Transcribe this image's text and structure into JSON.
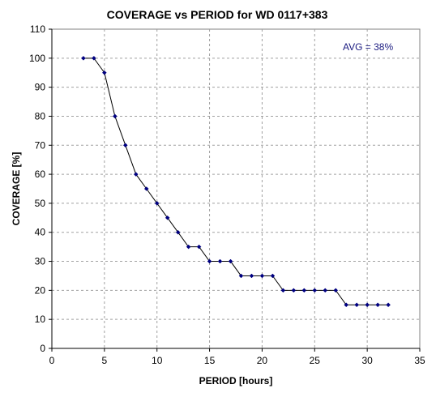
{
  "chart_data": {
    "type": "line",
    "title": "COVERAGE vs PERIOD for WD 0117+383",
    "xlabel": "PERIOD [hours]",
    "ylabel": "COVERAGE [%]",
    "xlim": [
      0,
      35
    ],
    "ylim": [
      0,
      110
    ],
    "xticks": [
      0,
      5,
      10,
      15,
      20,
      25,
      30,
      35
    ],
    "yticks": [
      0,
      10,
      20,
      30,
      40,
      50,
      60,
      70,
      80,
      90,
      100,
      110
    ],
    "grid": true,
    "annotation": "AVG = 38%",
    "series": [
      {
        "color": "#000080",
        "x": [
          3,
          4,
          5,
          6,
          7,
          8,
          9,
          10,
          11,
          12,
          13,
          14,
          15,
          16,
          17,
          18,
          19,
          20,
          21,
          22,
          23,
          24,
          25,
          26,
          27,
          28,
          29,
          30,
          31,
          32
        ],
        "y": [
          100,
          100,
          95,
          80,
          70,
          60,
          55,
          50,
          45,
          40,
          35,
          35,
          30,
          30,
          30,
          25,
          25,
          25,
          25,
          20,
          20,
          20,
          20,
          20,
          20,
          15,
          15,
          15,
          15,
          15
        ]
      }
    ]
  }
}
